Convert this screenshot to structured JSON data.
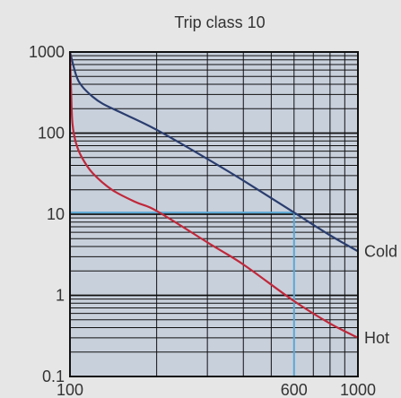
{
  "chart_data": {
    "type": "line",
    "title": "Trip class 10",
    "xlabel": "",
    "ylabel": "",
    "x_scale": "log",
    "y_scale": "log",
    "xlim": [
      100,
      1000
    ],
    "ylim": [
      0.1,
      1000
    ],
    "x_tick_labels": [
      "100",
      "600",
      "1000"
    ],
    "y_tick_labels": [
      "0.1",
      "1",
      "10",
      "100",
      "1000"
    ],
    "x_ticks": [
      100,
      600,
      1000
    ],
    "y_ticks": [
      0.1,
      1,
      10,
      100,
      1000
    ],
    "grid": true,
    "series": [
      {
        "name": "Cold",
        "color": "#2a3d6e",
        "x": [
          100,
          105,
          110,
          120,
          130,
          150,
          200,
          300,
          400,
          600,
          800,
          1000
        ],
        "y": [
          1000,
          520,
          380,
          280,
          230,
          180,
          110,
          48,
          26,
          10.5,
          5.5,
          3.5
        ]
      },
      {
        "name": "Hot",
        "color": "#c0283a",
        "x": [
          100,
          101,
          102,
          105,
          110,
          120,
          140,
          170,
          200,
          300,
          400,
          600,
          800,
          1000
        ],
        "y": [
          1000,
          300,
          130,
          75,
          50,
          32,
          20,
          14,
          11,
          4.5,
          2.4,
          0.85,
          0.45,
          0.3
        ]
      }
    ],
    "reference": {
      "color": "#5ba7d4",
      "x": 600,
      "y": 10.5
    },
    "plot_background": "#c8d0dc",
    "grid_color": "#111111"
  }
}
